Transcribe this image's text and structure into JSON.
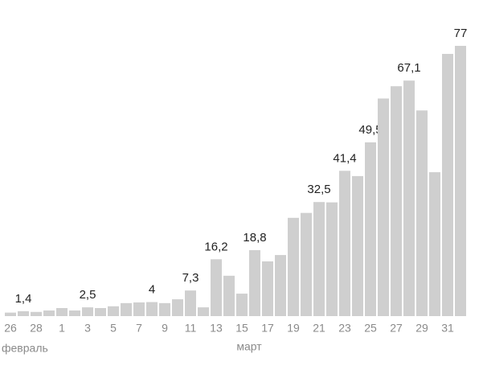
{
  "chart_data": {
    "type": "bar",
    "categories": [
      "26",
      null,
      "28",
      null,
      "1",
      null,
      "3",
      null,
      "5",
      null,
      "7",
      null,
      "9",
      null,
      "11",
      null,
      "13",
      null,
      "15",
      null,
      "17",
      null,
      "19",
      null,
      "21",
      null,
      "23",
      null,
      "25",
      null,
      "27",
      null,
      "29",
      null,
      "31",
      null
    ],
    "values": [
      1.0,
      1.4,
      1.2,
      1.6,
      2.3,
      1.6,
      2.5,
      2.3,
      2.8,
      3.7,
      3.9,
      4,
      3.7,
      4.8,
      7.3,
      2.5,
      16.2,
      11.5,
      6.4,
      18.8,
      15.6,
      17.4,
      28,
      29.4,
      32.5,
      32.4,
      41.4,
      39.9,
      49.5,
      62,
      65.5,
      67.1,
      58.6,
      41,
      74.7,
      77
    ],
    "value_labels": [
      null,
      "1,4",
      null,
      null,
      null,
      null,
      "2,5",
      null,
      null,
      null,
      null,
      "4",
      null,
      null,
      "7,3",
      null,
      "16,2",
      null,
      null,
      "18,8",
      null,
      null,
      null,
      null,
      "32,5",
      null,
      "41,4",
      null,
      "49,5",
      null,
      null,
      "67,1",
      null,
      null,
      null,
      "77"
    ],
    "color": "#cfcfcf",
    "annotations": [
      "февраль",
      "март"
    ]
  }
}
